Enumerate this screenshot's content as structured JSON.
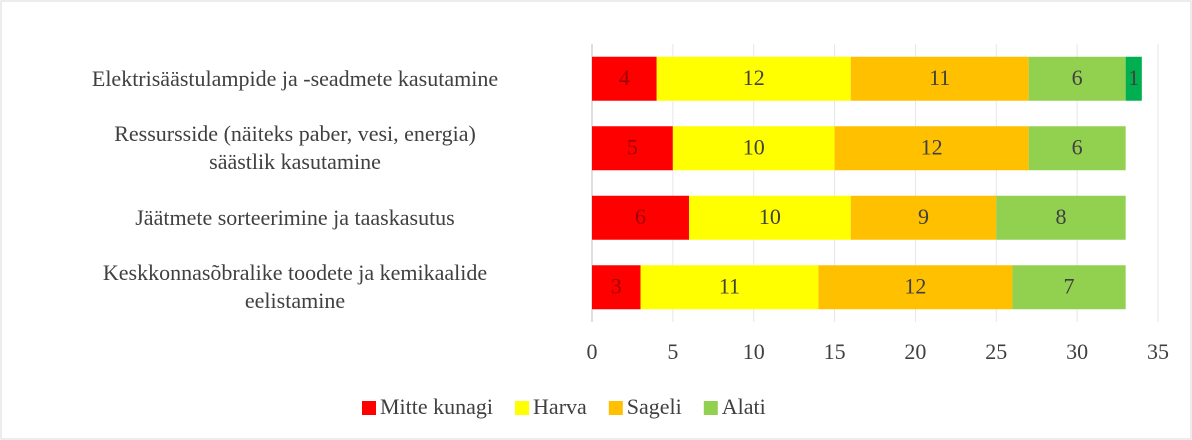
{
  "chart_data": {
    "type": "stacked-bar-horizontal",
    "categories": [
      "Elektrisäästulampide ja -seadmete kasutamine",
      "Ressursside (näiteks paber, vesi, energia)\nsäästlik kasutamine",
      "Jäätmete sorteerimine ja taaskasutus",
      "Keskkonnasõbralike toodete ja kemikaalide\neelistamine"
    ],
    "series": [
      {
        "name": "Mitte kunagi",
        "color": "#ff0000",
        "values": [
          4,
          5,
          6,
          3
        ]
      },
      {
        "name": "Harva",
        "color": "#ffff00",
        "values": [
          12,
          10,
          10,
          11
        ]
      },
      {
        "name": "Sageli",
        "color": "#ffc000",
        "values": [
          11,
          12,
          9,
          12
        ]
      },
      {
        "name": "Alati",
        "color": "#92d050",
        "values": [
          6,
          6,
          8,
          7
        ]
      },
      {
        "color": "#00b050",
        "values": [
          1,
          null,
          null,
          null
        ]
      }
    ],
    "xlim": [
      0,
      35
    ],
    "xticks": [
      0,
      5,
      10,
      15,
      20,
      25,
      30,
      35
    ],
    "grid": true,
    "legend": "bottom"
  }
}
